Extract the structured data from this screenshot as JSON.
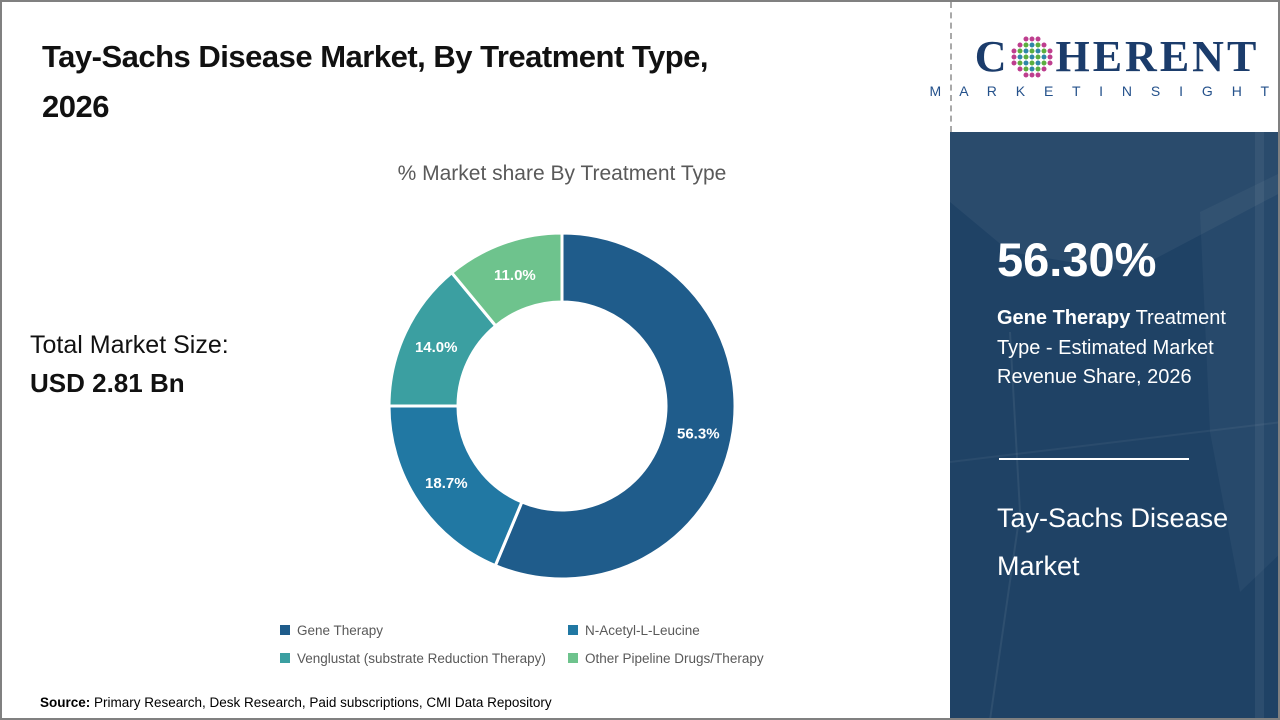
{
  "page": {
    "title_line1": "Tay-Sachs Disease Market, By Treatment Type,",
    "title_line2": "2026",
    "total_market_label": "Total Market Size:",
    "total_market_value": "USD 2.81 Bn",
    "source_label": "Source:",
    "source_text": " Primary Research, Desk Research, Paid subscriptions, CMI Data Repository"
  },
  "chart_data": {
    "type": "pie",
    "subtype": "donut",
    "title": "% Market share By Treatment Type",
    "categories": [
      "Gene Therapy",
      "N-Acetyl-L-Leucine",
      "Venglustat (substrate Reduction Therapy)",
      "Other Pipeline Drugs/Therapy"
    ],
    "values": [
      56.3,
      18.7,
      14.0,
      11.0
    ],
    "labels": [
      "56.3%",
      "18.7%",
      "14.0%",
      "11.0%"
    ],
    "colors": [
      "#1F5C8B",
      "#2178A3",
      "#3B9FA1",
      "#6EC38D"
    ],
    "start_angle_deg": 0,
    "direction": "clockwise",
    "legend_position": "bottom",
    "slice_label_color": "#FFFFFF"
  },
  "sidebar": {
    "logo": {
      "word_start": "C",
      "word_end": "HERENT",
      "tagline": "M A R K E T   I N S I G H T S",
      "text_color": "#1B3C6B",
      "globe_colors": {
        "outer": "#BE3E8E",
        "teal": "#2E86A8",
        "green": "#5BAE3F"
      }
    },
    "panel_background": "#1F4265",
    "highlight_value": "56.30%",
    "highlight_bold": "Gene Therapy",
    "highlight_rest": " Treatment Type - Estimated Market Revenue Share, 2026",
    "footer_title": "Tay-Sachs Disease Market"
  }
}
